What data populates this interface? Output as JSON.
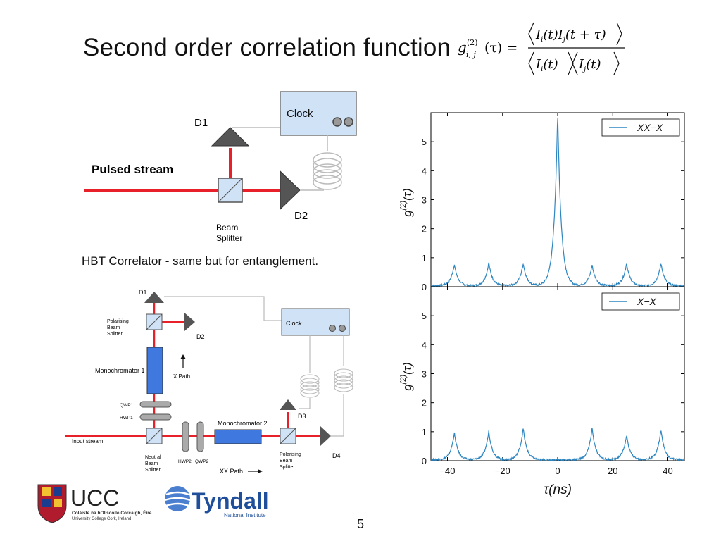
{
  "slide": {
    "title": "Second order correlation function",
    "formula": {
      "lhs": "g",
      "lhs_sup": "(2)",
      "lhs_sub": "i, j",
      "lhs_arg": "(τ) =",
      "numerator": "I_i(t) I_j(t+τ)",
      "denominator": "I_i(t) I_j(t)"
    },
    "page_number": "5",
    "hbt_caption": "HBT Correlator - same but for entanglement."
  },
  "diagram1": {
    "clock_label": "Clock",
    "d1": "D1",
    "d2": "D2",
    "pulsed_stream": "Pulsed stream",
    "beam_splitter_line1": "Beam",
    "beam_splitter_line2": "Splitter"
  },
  "diagram2": {
    "d1": "D1",
    "d2": "D2",
    "d3": "D3",
    "d4": "D4",
    "clock_label": "Clock",
    "pbs1_lines": [
      "Polarising",
      "Beam",
      "Splitter"
    ],
    "mono1": "Monochromator 1",
    "x_path": "X Path",
    "qwp1": "QWP1",
    "hwp1": "HWP1",
    "input_stream": "Input stream",
    "nbs_lines": [
      "Neutral",
      "Beam",
      "Splitter"
    ],
    "hwp2": "HWP2",
    "qwp2": "QWP2",
    "mono2": "Monochromator 2",
    "pbs2_lines": [
      "Polarising",
      "Beam",
      "Splitter"
    ],
    "xx_path": "XX Path"
  },
  "logos": {
    "ucc_name": "UCC",
    "ucc_line1": "Coláiste na hOllscoile Corcaigh, Éire",
    "ucc_line2": "University College Cork, Ireland",
    "tyndall_name": "Tyndall",
    "tyndall_sub": "National Institute"
  },
  "colors": {
    "beam_red": "#e8202a",
    "mono_blue": "#3f79e0",
    "clock_fill": "#cfe2f6",
    "trace_blue": "#2e86c1",
    "detector_gray": "#555555"
  },
  "chart_data": [
    {
      "type": "line",
      "ylabel": "g^(2)(τ)",
      "xlim": [
        -46,
        46
      ],
      "ylim": [
        0,
        6
      ],
      "yticks": [
        0,
        1,
        2,
        3,
        4,
        5
      ],
      "legend": "XX−X",
      "legend_position": "top-right",
      "peak_centers": [
        -37.5,
        -25,
        -12.5,
        0,
        12.5,
        25,
        37.5
      ],
      "peak_heights": [
        0.75,
        0.8,
        0.78,
        6.0,
        0.72,
        0.78,
        0.78
      ],
      "baseline": 0.03
    },
    {
      "type": "line",
      "ylabel": "g^(2)(τ)",
      "xlabel": "τ(ns)",
      "xlim": [
        -46,
        46
      ],
      "ylim": [
        0,
        6
      ],
      "yticks": [
        0,
        1,
        2,
        3,
        4,
        5
      ],
      "xticks": [
        -40,
        -20,
        0,
        20,
        40
      ],
      "legend": "X−X",
      "legend_position": "top-right",
      "peak_centers": [
        -37.5,
        -25,
        -12.5,
        0,
        12.5,
        25,
        37.5
      ],
      "peak_heights": [
        0.95,
        1.0,
        1.1,
        0.0,
        1.1,
        0.85,
        1.05
      ],
      "baseline": 0.03
    }
  ]
}
